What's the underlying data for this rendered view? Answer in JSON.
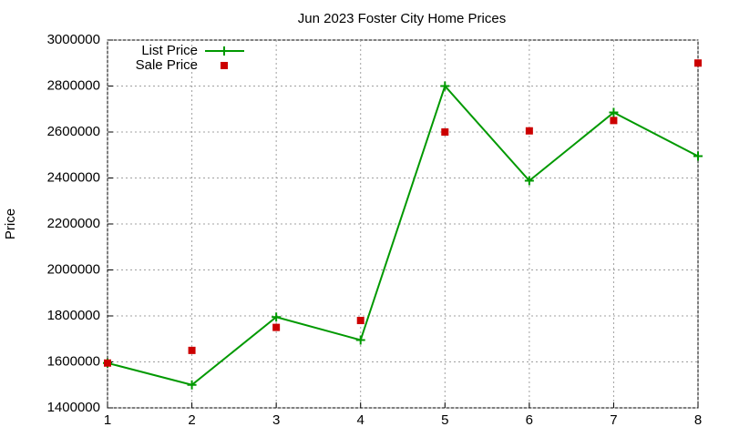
{
  "chart_data": {
    "type": "line",
    "title": "Jun 2023 Foster City Home Prices",
    "y_label": "Price",
    "x": [
      1,
      2,
      3,
      4,
      5,
      6,
      7,
      8
    ],
    "xlim": [
      1,
      8
    ],
    "xticks": [
      1,
      2,
      3,
      4,
      5,
      6,
      7,
      8
    ],
    "ylim": [
      1400000,
      3000000
    ],
    "yticks": [
      1400000,
      1600000,
      1800000,
      2000000,
      2200000,
      2400000,
      2600000,
      2800000,
      3000000
    ],
    "grid": true,
    "legend": "top-left",
    "series": [
      {
        "name": "List Price",
        "color": "#009900",
        "style": "line",
        "values": [
          1595000,
          1500000,
          1795000,
          1695000,
          2800000,
          2388000,
          2685000,
          2495000
        ]
      },
      {
        "name": "Sale Price",
        "color": "#cc0000",
        "style": "points",
        "values": [
          1595000,
          1650000,
          1750000,
          1780000,
          2600000,
          2605000,
          2650000,
          2900000
        ]
      }
    ]
  }
}
